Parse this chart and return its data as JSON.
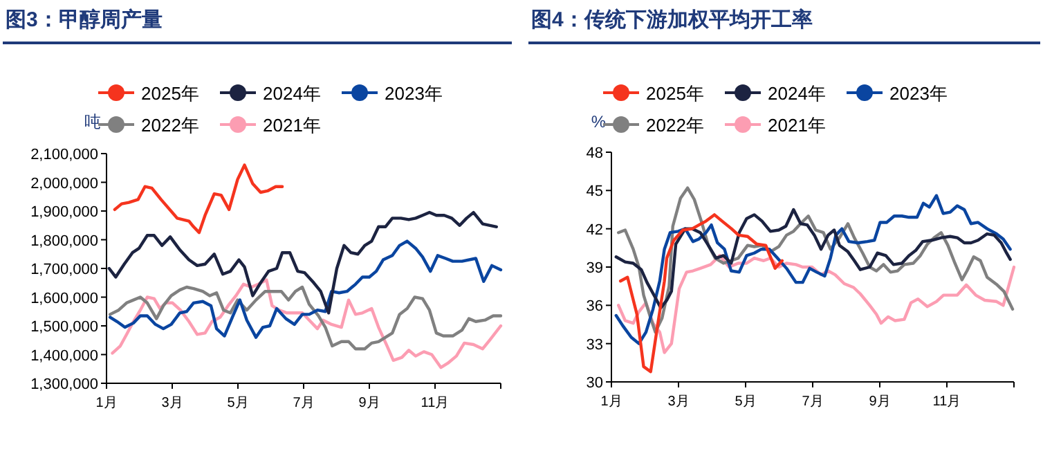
{
  "chart_data": [
    {
      "type": "line",
      "title": "图3：甲醇周产量",
      "ylabel": "吨",
      "legend": "top",
      "xlim": [
        1,
        13
      ],
      "xticks": [
        {
          "value": 1,
          "label": "1月"
        },
        {
          "value": 3,
          "label": "3月"
        },
        {
          "value": 5,
          "label": "5月"
        },
        {
          "value": 7,
          "label": "7月"
        },
        {
          "value": 9,
          "label": "9月"
        },
        {
          "value": 11,
          "label": "11月"
        },
        {
          "value": 13,
          "label": null
        }
      ],
      "ylim": [
        1300000,
        2100000
      ],
      "yticks": [
        {
          "value": 1300000,
          "label": "1,300,000"
        },
        {
          "value": 1400000,
          "label": "1,400,000"
        },
        {
          "value": 1500000,
          "label": "1,500,000"
        },
        {
          "value": 1600000,
          "label": "1,600,000"
        },
        {
          "value": 1700000,
          "label": "1,700,000"
        },
        {
          "value": 1800000,
          "label": "1,800,000"
        },
        {
          "value": 1900000,
          "label": "1,900,000"
        },
        {
          "value": 2000000,
          "label": "2,000,000"
        },
        {
          "value": 2100000,
          "label": "2,100,000"
        }
      ],
      "series": [
        {
          "name": "2025年",
          "color": "#f5341e",
          "x": [
            1.25,
            1.46,
            1.68,
            1.96,
            2.17,
            2.38,
            2.66,
            3.15,
            3.51,
            3.65,
            3.82,
            4.0,
            4.28,
            4.49,
            4.73,
            4.99,
            5.2,
            5.45,
            5.69,
            5.9,
            6.15,
            6.35
          ],
          "values": [
            1905000,
            1925000,
            1930000,
            1940000,
            1985000,
            1980000,
            1940000,
            1875000,
            1865000,
            1845000,
            1825000,
            1885000,
            1960000,
            1955000,
            1905000,
            2010000,
            2060000,
            1995000,
            1965000,
            1970000,
            1985000,
            1985000
          ]
        },
        {
          "name": "2024年",
          "color": "#1c2341",
          "x": [
            1.08,
            1.28,
            1.54,
            1.79,
            1.99,
            2.24,
            2.45,
            2.69,
            2.94,
            3.23,
            3.51,
            3.76,
            4.0,
            4.28,
            4.54,
            4.77,
            5.03,
            5.2,
            5.45,
            5.69,
            5.93,
            6.18,
            6.35,
            6.58,
            6.82,
            7.03,
            7.31,
            7.52,
            7.76,
            8.01,
            8.23,
            8.44,
            8.65,
            8.86,
            9.07,
            9.28,
            9.49,
            9.7,
            9.96,
            10.2,
            10.41,
            10.62,
            10.83,
            11.04,
            11.28,
            11.51,
            11.75,
            11.96,
            12.17,
            12.45,
            12.87
          ],
          "values": [
            1700000,
            1670000,
            1715000,
            1755000,
            1770000,
            1815000,
            1815000,
            1780000,
            1810000,
            1765000,
            1730000,
            1710000,
            1715000,
            1750000,
            1680000,
            1690000,
            1730000,
            1705000,
            1605000,
            1650000,
            1690000,
            1700000,
            1755000,
            1755000,
            1690000,
            1685000,
            1650000,
            1620000,
            1545000,
            1700000,
            1780000,
            1755000,
            1750000,
            1780000,
            1795000,
            1845000,
            1845000,
            1875000,
            1875000,
            1870000,
            1875000,
            1885000,
            1895000,
            1885000,
            1885000,
            1875000,
            1850000,
            1875000,
            1895000,
            1855000,
            1845000
          ]
        },
        {
          "name": "2023年",
          "color": "#0a45a0",
          "x": [
            1.11,
            1.32,
            1.56,
            1.82,
            2.03,
            2.24,
            2.49,
            2.73,
            2.97,
            3.23,
            3.44,
            3.65,
            3.93,
            4.18,
            4.35,
            4.59,
            4.85,
            5.06,
            5.27,
            5.55,
            5.76,
            5.97,
            6.18,
            6.46,
            6.72,
            6.96,
            7.17,
            7.42,
            7.66,
            7.85,
            8.08,
            8.32,
            8.58,
            8.79,
            9.0,
            9.21,
            9.42,
            9.7,
            9.92,
            10.15,
            10.41,
            10.62,
            10.86,
            11.08,
            11.32,
            11.54,
            11.82,
            12.24,
            12.48,
            12.73,
            13.0
          ],
          "values": [
            1530000,
            1515000,
            1495000,
            1510000,
            1535000,
            1535000,
            1505000,
            1490000,
            1505000,
            1545000,
            1550000,
            1580000,
            1585000,
            1570000,
            1490000,
            1465000,
            1535000,
            1590000,
            1520000,
            1460000,
            1495000,
            1500000,
            1560000,
            1525000,
            1505000,
            1540000,
            1540000,
            1555000,
            1550000,
            1620000,
            1615000,
            1620000,
            1645000,
            1670000,
            1670000,
            1690000,
            1730000,
            1745000,
            1780000,
            1795000,
            1770000,
            1740000,
            1690000,
            1745000,
            1735000,
            1725000,
            1725000,
            1735000,
            1655000,
            1710000,
            1695000
          ]
        },
        {
          "name": "2022年",
          "color": "#808080",
          "x": [
            1.11,
            1.37,
            1.61,
            1.82,
            2.03,
            2.24,
            2.52,
            2.73,
            2.97,
            3.23,
            3.44,
            3.65,
            3.93,
            4.14,
            4.35,
            4.56,
            4.77,
            4.99,
            5.27,
            5.55,
            5.83,
            6.11,
            6.32,
            6.54,
            6.75,
            6.96,
            7.17,
            7.45,
            7.66,
            7.87,
            8.15,
            8.37,
            8.58,
            8.86,
            9.07,
            9.28,
            9.49,
            9.7,
            9.92,
            10.15,
            10.38,
            10.62,
            10.83,
            11.04,
            11.25,
            11.54,
            11.82,
            12.03,
            12.24,
            12.52,
            12.77,
            13.0
          ],
          "values": [
            1540000,
            1555000,
            1580000,
            1590000,
            1600000,
            1580000,
            1525000,
            1570000,
            1605000,
            1625000,
            1635000,
            1630000,
            1620000,
            1605000,
            1615000,
            1555000,
            1545000,
            1590000,
            1555000,
            1590000,
            1620000,
            1620000,
            1620000,
            1590000,
            1620000,
            1635000,
            1575000,
            1535000,
            1495000,
            1430000,
            1445000,
            1445000,
            1420000,
            1420000,
            1440000,
            1445000,
            1460000,
            1475000,
            1540000,
            1560000,
            1600000,
            1595000,
            1555000,
            1475000,
            1465000,
            1465000,
            1485000,
            1525000,
            1515000,
            1520000,
            1535000,
            1535000
          ]
        },
        {
          "name": "2021年",
          "color": "#fc9db2",
          "x": [
            1.18,
            1.42,
            1.61,
            1.82,
            2.03,
            2.24,
            2.45,
            2.63,
            2.8,
            3.01,
            3.25,
            3.51,
            3.76,
            4.0,
            4.21,
            4.46,
            4.7,
            4.94,
            5.17,
            5.41,
            5.62,
            5.87,
            6.04,
            6.25,
            6.49,
            6.75,
            6.96,
            7.17,
            7.42,
            7.59,
            7.85,
            8.15,
            8.37,
            8.58,
            8.79,
            9.07,
            9.28,
            9.54,
            9.73,
            9.99,
            10.2,
            10.41,
            10.66,
            10.9,
            11.18,
            11.39,
            11.65,
            11.89,
            12.17,
            12.45,
            12.66,
            13.0
          ],
          "values": [
            1405000,
            1430000,
            1470000,
            1515000,
            1555000,
            1600000,
            1595000,
            1560000,
            1580000,
            1580000,
            1555000,
            1515000,
            1470000,
            1475000,
            1515000,
            1530000,
            1570000,
            1605000,
            1645000,
            1635000,
            1645000,
            1660000,
            1570000,
            1555000,
            1545000,
            1545000,
            1545000,
            1520000,
            1490000,
            1520000,
            1505000,
            1495000,
            1590000,
            1540000,
            1545000,
            1560000,
            1495000,
            1430000,
            1380000,
            1390000,
            1415000,
            1395000,
            1410000,
            1400000,
            1355000,
            1370000,
            1395000,
            1440000,
            1435000,
            1420000,
            1450000,
            1500000
          ]
        }
      ]
    },
    {
      "type": "line",
      "title": "图4：传统下游加权平均开工率",
      "ylabel": "%",
      "legend": "top",
      "xlim": [
        1,
        13
      ],
      "xticks": [
        {
          "value": 1,
          "label": "1月"
        },
        {
          "value": 3,
          "label": "3月"
        },
        {
          "value": 5,
          "label": "5月"
        },
        {
          "value": 7,
          "label": "7月"
        },
        {
          "value": 9,
          "label": "9月"
        },
        {
          "value": 11,
          "label": "11月"
        },
        {
          "value": 13,
          "label": null
        }
      ],
      "ylim": [
        30,
        48
      ],
      "yticks": [
        30,
        33,
        36,
        39,
        42,
        45,
        48
      ],
      "series": [
        {
          "name": "2025年",
          "color": "#f5341e",
          "x": [
            1.27,
            1.48,
            1.76,
            1.96,
            2.17,
            2.37,
            2.58,
            2.65,
            2.86,
            3.13,
            3.41,
            3.61,
            3.82,
            4.07,
            4.3,
            4.58,
            4.79,
            5.06,
            5.33,
            5.6,
            5.88,
            6.09
          ],
          "values": [
            37.9,
            38.2,
            35.3,
            31.2,
            30.8,
            34.3,
            37.9,
            39.7,
            41.1,
            41.9,
            42.0,
            42.3,
            42.6,
            43.1,
            42.6,
            42.0,
            41.5,
            41.4,
            40.8,
            40.7,
            38.9,
            39.5
          ]
        },
        {
          "name": "2024年",
          "color": "#1c2341",
          "x": [
            1.14,
            1.41,
            1.65,
            1.89,
            2.06,
            2.31,
            2.47,
            2.65,
            2.79,
            2.92,
            3.2,
            3.41,
            3.65,
            3.89,
            4.12,
            4.34,
            4.57,
            4.81,
            5.03,
            5.26,
            5.49,
            5.74,
            5.99,
            6.2,
            6.43,
            6.64,
            6.84,
            7.05,
            7.25,
            7.46,
            7.64,
            7.8,
            8.05,
            8.24,
            8.42,
            8.7,
            8.93,
            9.18,
            9.41,
            9.66,
            9.87,
            10.07,
            10.28,
            10.55,
            10.83,
            11.1,
            11.31,
            11.52,
            11.72,
            11.93,
            12.2,
            12.41,
            12.62,
            12.78,
            12.89
          ],
          "values": [
            39.8,
            39.4,
            39.3,
            38.8,
            37.8,
            36.6,
            35.8,
            36.4,
            37.1,
            40.8,
            42.0,
            42.0,
            41.7,
            40.7,
            39.7,
            39.9,
            39.3,
            41.7,
            42.8,
            43.1,
            42.6,
            41.8,
            41.9,
            42.2,
            43.5,
            42.4,
            42.3,
            41.5,
            40.4,
            41.5,
            41.9,
            40.7,
            40.2,
            39.5,
            38.8,
            39.0,
            40.1,
            39.9,
            39.2,
            39.3,
            39.9,
            40.3,
            41.0,
            41.1,
            41.3,
            41.4,
            41.3,
            40.9,
            40.9,
            41.1,
            41.6,
            41.5,
            40.9,
            40.1,
            39.6
          ]
        },
        {
          "name": "2023年",
          "color": "#0a45a0",
          "x": [
            1.14,
            1.34,
            1.59,
            1.82,
            2.03,
            2.24,
            2.44,
            2.58,
            2.75,
            2.99,
            3.2,
            3.43,
            3.61,
            3.82,
            3.98,
            4.16,
            4.37,
            4.57,
            4.81,
            5.03,
            5.26,
            5.47,
            5.71,
            5.95,
            6.22,
            6.5,
            6.7,
            6.91,
            7.12,
            7.36,
            7.53,
            7.69,
            7.87,
            8.08,
            8.35,
            8.63,
            8.84,
            9.01,
            9.21,
            9.43,
            9.66,
            9.87,
            10.11,
            10.3,
            10.48,
            10.69,
            10.89,
            11.1,
            11.31,
            11.52,
            11.72,
            11.93,
            12.2,
            12.48,
            12.68,
            12.89
          ],
          "values": [
            35.2,
            34.4,
            33.5,
            33.0,
            33.9,
            35.7,
            37.9,
            40.4,
            41.7,
            41.8,
            42.0,
            41.0,
            41.2,
            41.7,
            42.3,
            40.9,
            40.4,
            38.7,
            38.6,
            39.9,
            40.1,
            40.4,
            40.4,
            39.7,
            38.9,
            37.8,
            37.8,
            38.9,
            38.6,
            38.3,
            39.7,
            41.5,
            42.0,
            41.0,
            40.9,
            41.0,
            41.1,
            42.5,
            42.5,
            43.0,
            43.0,
            42.9,
            42.9,
            44.0,
            43.7,
            44.6,
            43.2,
            43.3,
            43.8,
            43.5,
            42.4,
            42.5,
            42.0,
            41.6,
            41.2,
            40.4
          ]
        },
        {
          "name": "2022年",
          "color": "#808080",
          "x": [
            1.21,
            1.41,
            1.65,
            1.82,
            1.96,
            2.17,
            2.31,
            2.51,
            2.72,
            2.83,
            3.06,
            3.27,
            3.47,
            3.68,
            3.89,
            4.09,
            4.34,
            4.57,
            4.78,
            5.06,
            5.26,
            5.49,
            5.74,
            5.99,
            6.22,
            6.43,
            6.64,
            6.87,
            7.09,
            7.32,
            7.53,
            7.8,
            8.05,
            8.24,
            8.49,
            8.7,
            8.9,
            9.11,
            9.32,
            9.53,
            9.73,
            10.0,
            10.21,
            10.42,
            10.62,
            10.83,
            11.03,
            11.24,
            11.45,
            11.6,
            11.8,
            12.0,
            12.2,
            12.5,
            12.7,
            12.96
          ],
          "values": [
            41.7,
            41.9,
            40.4,
            39.0,
            36.8,
            35.0,
            33.9,
            35.0,
            37.5,
            42.2,
            44.4,
            45.2,
            44.3,
            42.6,
            40.7,
            39.7,
            39.3,
            39.5,
            39.7,
            40.7,
            40.6,
            40.7,
            40.2,
            40.6,
            41.5,
            41.8,
            42.4,
            43.0,
            41.9,
            41.7,
            40.4,
            41.3,
            42.4,
            41.3,
            40.1,
            39.0,
            38.7,
            39.2,
            38.6,
            38.7,
            39.2,
            39.3,
            39.9,
            40.8,
            41.3,
            41.7,
            40.7,
            39.3,
            38.0,
            38.7,
            39.8,
            39.5,
            38.2,
            37.6,
            37.1,
            35.7
          ]
        },
        {
          "name": "2021年",
          "color": "#fc9db2",
          "x": [
            1.21,
            1.41,
            1.65,
            1.82,
            2.03,
            2.24,
            2.44,
            2.58,
            2.79,
            3.02,
            3.24,
            3.43,
            3.65,
            3.96,
            4.23,
            4.51,
            4.78,
            5.03,
            5.26,
            5.54,
            5.74,
            5.99,
            6.22,
            6.5,
            6.7,
            6.98,
            7.25,
            7.46,
            7.67,
            7.94,
            8.22,
            8.42,
            8.7,
            8.9,
            9.04,
            9.25,
            9.45,
            9.73,
            9.93,
            10.14,
            10.42,
            10.69,
            10.9,
            11.1,
            11.31,
            11.58,
            11.86,
            12.13,
            12.48,
            12.68,
            12.82,
            13.0
          ],
          "values": [
            36.0,
            34.8,
            34.6,
            35.5,
            36.2,
            34.6,
            33.9,
            32.3,
            33.0,
            37.3,
            38.6,
            38.7,
            38.9,
            39.2,
            39.9,
            39.0,
            39.3,
            39.3,
            39.7,
            39.5,
            39.7,
            39.0,
            39.3,
            39.2,
            39.0,
            39.0,
            38.4,
            38.7,
            38.4,
            37.7,
            37.4,
            36.9,
            36.0,
            35.3,
            34.6,
            35.1,
            34.8,
            34.9,
            36.2,
            36.5,
            35.9,
            36.3,
            36.8,
            36.8,
            36.8,
            37.6,
            36.8,
            36.4,
            36.3,
            36.0,
            37.3,
            39.0
          ]
        }
      ]
    }
  ]
}
